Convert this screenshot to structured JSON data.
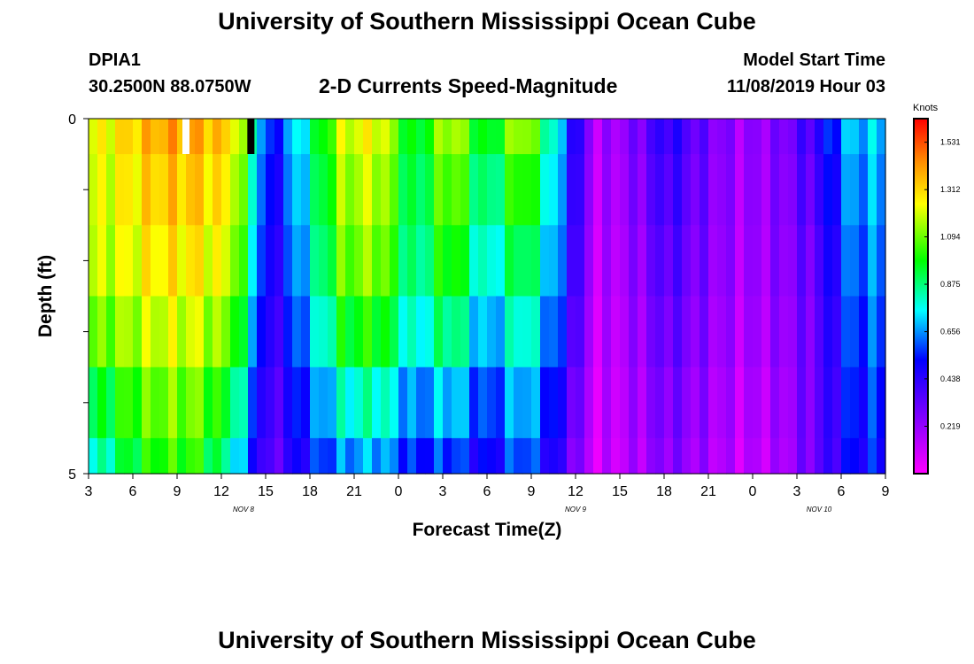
{
  "page": {
    "title": "University of Southern Mississippi Ocean Cube",
    "footer_title": "University of Southern Mississippi Ocean Cube",
    "station": "DPIA1",
    "coordinates": "30.2500N 88.0750W",
    "subtitle": "2-D Currents Speed-Magnitude",
    "model_start_label": "Model Start Time",
    "model_start_value": "11/08/2019 Hour 03"
  },
  "chart_data": {
    "type": "heatmap",
    "title": "2-D Currents Speed-Magnitude",
    "xlabel": "Forecast Time(Z)",
    "ylabel": "Depth (ft)",
    "x_ticks": [
      "3",
      "6",
      "9",
      "12",
      "15",
      "18",
      "21",
      "0",
      "3",
      "6",
      "9",
      "12",
      "15",
      "18",
      "21",
      "0",
      "3",
      "6",
      "9"
    ],
    "day_labels": [
      {
        "label": "NOV 8",
        "at_tick": 3.5
      },
      {
        "label": "NOV 9",
        "at_tick": 11
      },
      {
        "label": "NOV 10",
        "at_tick": 16.5
      }
    ],
    "y_ticks": [
      "0",
      "5"
    ],
    "y_range": [
      0,
      5
    ],
    "forecast_hours": [
      3,
      57
    ],
    "colorbar": {
      "unit": "Knots",
      "labels": [
        "1.531",
        "1.312",
        "1.094",
        "0.875",
        "0.656",
        "0.438",
        "0.219"
      ],
      "range": [
        0,
        1.64
      ]
    },
    "markers": [
      {
        "forecast_hour": 9.6,
        "color": "#ffffff"
      },
      {
        "forecast_hour": 14.0,
        "color": "#000000"
      }
    ],
    "depth_layers": [
      "0-0.5",
      "0.5-1.5",
      "1.5-2.5",
      "2.5-3.5",
      "3.5-4.5",
      "4.5-5"
    ],
    "speed_profile_knots": [
      [
        1.2,
        1.15,
        0.7
      ],
      [
        1.3,
        1.2,
        0.9
      ],
      [
        1.4,
        1.25,
        1.0
      ],
      [
        1.4,
        1.25,
        1.0
      ],
      [
        1.3,
        1.15,
        0.75
      ],
      [
        0.5,
        0.4,
        0.3
      ],
      [
        0.8,
        0.7,
        0.5
      ],
      [
        1.2,
        1.05,
        0.6
      ],
      [
        1.25,
        1.1,
        0.65
      ],
      [
        0.9,
        0.8,
        0.5
      ],
      [
        1.2,
        1.0,
        0.55
      ],
      [
        0.9,
        0.7,
        0.45
      ],
      [
        1.2,
        0.9,
        0.6
      ],
      [
        0.7,
        0.6,
        0.4
      ],
      [
        0.15,
        0.12,
        0.08
      ],
      [
        0.25,
        0.2,
        0.15
      ],
      [
        0.45,
        0.35,
        0.25
      ],
      [
        0.3,
        0.25,
        0.18
      ],
      [
        0.2,
        0.18,
        0.12
      ],
      [
        0.25,
        0.22,
        0.15
      ],
      [
        0.4,
        0.3,
        0.3
      ],
      [
        0.7,
        0.6,
        0.5
      ],
      [
        0.7,
        0.62,
        0.52
      ]
    ]
  }
}
